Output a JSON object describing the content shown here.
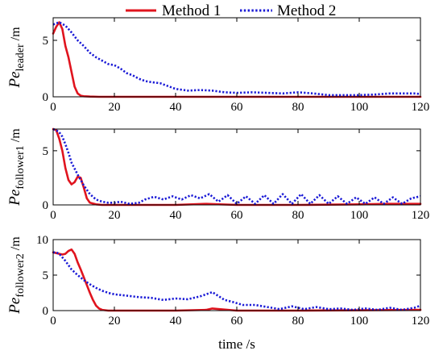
{
  "chart_data": {
    "type": "line",
    "legend": [
      {
        "name": "Method 1",
        "color": "#e0141e",
        "style": "solid"
      },
      {
        "name": "Method 2",
        "color": "#1a1ad6",
        "style": "dotted"
      }
    ],
    "shared_xlabel": "time /s",
    "subplots": [
      {
        "ylabel": {
          "main": "Pe",
          "sub": "leader",
          "unit": " /m"
        },
        "xlim": [
          0,
          120
        ],
        "ylim": [
          0,
          7
        ],
        "xticks": [
          0,
          20,
          40,
          60,
          80,
          100,
          120
        ],
        "yticks": [
          0,
          5
        ],
        "series": [
          {
            "name": "Method 1",
            "x": [
              0,
              1,
              2,
              3,
              4,
              5,
              6,
              7,
              8,
              9,
              10,
              12,
              15,
              20,
              40,
              60,
              80,
              100,
              120
            ],
            "y": [
              5.6,
              6.2,
              6.6,
              6.0,
              4.5,
              3.5,
              2.2,
              0.9,
              0.3,
              0.1,
              0.05,
              0.02,
              0.0,
              0.0,
              0.0,
              0.0,
              0.0,
              0.0,
              0.0
            ]
          },
          {
            "name": "Method 2",
            "x": [
              0,
              1,
              2,
              4,
              6,
              8,
              10,
              12,
              14,
              16,
              18,
              20,
              22,
              24,
              26,
              28,
              30,
              32,
              35,
              38,
              40,
              44,
              48,
              52,
              56,
              60,
              65,
              70,
              75,
              80,
              85,
              90,
              95,
              100,
              105,
              110,
              115,
              118,
              120
            ],
            "y": [
              6.4,
              6.5,
              6.6,
              6.3,
              5.7,
              5.0,
              4.5,
              3.9,
              3.5,
              3.2,
              2.9,
              2.8,
              2.5,
              2.1,
              1.9,
              1.6,
              1.4,
              1.3,
              1.2,
              0.9,
              0.7,
              0.55,
              0.6,
              0.55,
              0.4,
              0.35,
              0.4,
              0.35,
              0.3,
              0.4,
              0.3,
              0.15,
              0.15,
              0.15,
              0.2,
              0.3,
              0.3,
              0.3,
              0.25
            ]
          }
        ]
      },
      {
        "ylabel": {
          "main": "Pe",
          "sub": "follower1",
          "unit": " /m"
        },
        "xlim": [
          0,
          120
        ],
        "ylim": [
          0,
          7
        ],
        "xticks": [
          0,
          20,
          40,
          60,
          80,
          100,
          120
        ],
        "yticks": [
          0,
          5
        ],
        "series": [
          {
            "name": "Method 1",
            "x": [
              0,
              1,
              2,
              3,
              4,
              5,
              6,
              7,
              8,
              9,
              10,
              11,
              12,
              14,
              16,
              20,
              40,
              50,
              60,
              80,
              100,
              110,
              120
            ],
            "y": [
              7.0,
              6.9,
              6.1,
              5.0,
              3.4,
              2.3,
              1.9,
              2.1,
              2.6,
              2.5,
              1.6,
              0.6,
              0.2,
              0.05,
              0.0,
              0.0,
              0.0,
              0.1,
              0.0,
              0.0,
              0.05,
              0.1,
              0.1
            ]
          },
          {
            "name": "Method 2",
            "x": [
              0,
              1,
              2,
              3,
              4,
              5,
              6,
              8,
              10,
              12,
              14,
              16,
              18,
              20,
              22,
              25,
              28,
              30,
              33,
              36,
              39,
              42,
              45,
              48,
              51,
              54,
              57,
              60,
              63,
              66,
              69,
              72,
              75,
              78,
              81,
              84,
              87,
              90,
              93,
              96,
              99,
              102,
              105,
              108,
              111,
              114,
              117,
              120
            ],
            "y": [
              7.0,
              6.9,
              6.7,
              6.3,
              5.6,
              4.8,
              3.9,
              2.8,
              1.8,
              1.0,
              0.5,
              0.3,
              0.2,
              0.2,
              0.3,
              0.1,
              0.2,
              0.5,
              0.75,
              0.5,
              0.8,
              0.5,
              0.9,
              0.6,
              1.0,
              0.3,
              0.9,
              0.1,
              0.8,
              0.1,
              0.9,
              0.1,
              1.0,
              0.1,
              1.0,
              0.1,
              0.9,
              0.1,
              0.8,
              0.1,
              0.7,
              0.1,
              0.7,
              0.1,
              0.7,
              0.1,
              0.6,
              0.8
            ]
          }
        ]
      },
      {
        "ylabel": {
          "main": "Pe",
          "sub": "follower2",
          "unit": " /m"
        },
        "xlim": [
          0,
          120
        ],
        "ylim": [
          0,
          10
        ],
        "xticks": [
          0,
          20,
          40,
          60,
          80,
          100,
          120
        ],
        "yticks": [
          0,
          5,
          10
        ],
        "series": [
          {
            "name": "Method 1",
            "x": [
              0,
              1,
              2,
              3,
              4,
              5,
              6,
              7,
              8,
              9,
              10,
              11,
              12,
              13,
              14,
              15,
              16,
              18,
              20,
              40,
              50,
              52,
              60,
              80,
              100,
              120
            ],
            "y": [
              8.2,
              8.1,
              8.0,
              7.9,
              8.0,
              8.4,
              8.6,
              8.0,
              6.8,
              5.8,
              4.7,
              3.6,
              2.5,
              1.5,
              0.7,
              0.3,
              0.1,
              0.0,
              0.0,
              0.0,
              0.1,
              0.3,
              0.0,
              0.0,
              0.05,
              0.1
            ]
          },
          {
            "name": "Method 2",
            "x": [
              0,
              1,
              2,
              3,
              4,
              5,
              6,
              8,
              10,
              12,
              14,
              16,
              18,
              20,
              24,
              28,
              32,
              36,
              40,
              44,
              48,
              52,
              56,
              58,
              62,
              66,
              70,
              74,
              78,
              82,
              86,
              90,
              94,
              98,
              102,
              106,
              110,
              114,
              118,
              120
            ],
            "y": [
              8.2,
              8.2,
              8.0,
              7.5,
              7.0,
              6.4,
              5.8,
              5.0,
              4.3,
              3.7,
              3.2,
              2.8,
              2.5,
              2.3,
              2.1,
              1.9,
              1.8,
              1.5,
              1.7,
              1.6,
              2.0,
              2.6,
              1.5,
              1.3,
              0.8,
              0.8,
              0.5,
              0.2,
              0.6,
              0.2,
              0.5,
              0.2,
              0.3,
              0.1,
              0.3,
              0.1,
              0.4,
              0.1,
              0.4,
              0.7
            ]
          }
        ]
      }
    ]
  }
}
